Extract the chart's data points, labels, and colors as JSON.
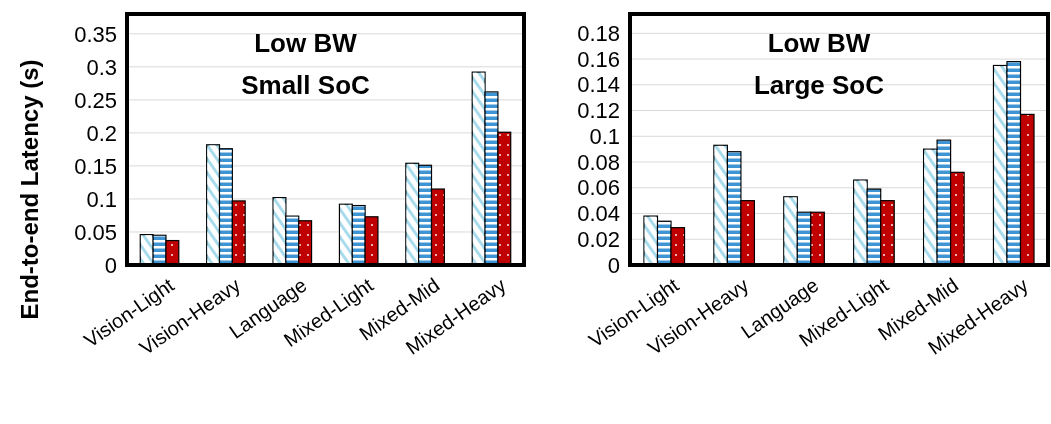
{
  "chart_data": [
    {
      "type": "bar",
      "title": "Low BW",
      "subtitle": "Small SoC",
      "ylabel": "End-to-end Latency (s)",
      "categories": [
        "Vision-Light",
        "Vision-Heavy",
        "Language",
        "Mixed-Light",
        "Mixed-Mid",
        "Mixed-Heavy"
      ],
      "series": [
        {
          "color": "#a8dcec",
          "values": [
            0.046,
            0.182,
            0.102,
            0.092,
            0.154,
            0.292
          ]
        },
        {
          "color": "#3f94d4",
          "values": [
            0.045,
            0.176,
            0.074,
            0.09,
            0.151,
            0.262
          ]
        },
        {
          "color": "#c00000",
          "values": [
            0.037,
            0.097,
            0.067,
            0.073,
            0.115,
            0.201
          ]
        }
      ],
      "ylim": [
        0,
        0.38
      ],
      "yticks": [
        0,
        0.05,
        0.1,
        0.15,
        0.2,
        0.25,
        0.3,
        0.35
      ],
      "grid": "y"
    },
    {
      "type": "bar",
      "title": "Low BW",
      "subtitle": "Large SoC",
      "categories": [
        "Vision-Light",
        "Vision-Heavy",
        "Language",
        "Mixed-Light",
        "Mixed-Mid",
        "Mixed-Heavy"
      ],
      "series": [
        {
          "color": "#a8dcec",
          "values": [
            0.038,
            0.093,
            0.053,
            0.066,
            0.09,
            0.155
          ]
        },
        {
          "color": "#3f94d4",
          "values": [
            0.034,
            0.088,
            0.041,
            0.059,
            0.097,
            0.158
          ]
        },
        {
          "color": "#c00000",
          "values": [
            0.029,
            0.05,
            0.041,
            0.05,
            0.072,
            0.117
          ]
        }
      ],
      "ylim": [
        0,
        0.195
      ],
      "yticks": [
        0,
        0.02,
        0.04,
        0.06,
        0.08,
        0.1,
        0.12,
        0.14,
        0.16,
        0.18
      ],
      "grid": "y"
    }
  ]
}
